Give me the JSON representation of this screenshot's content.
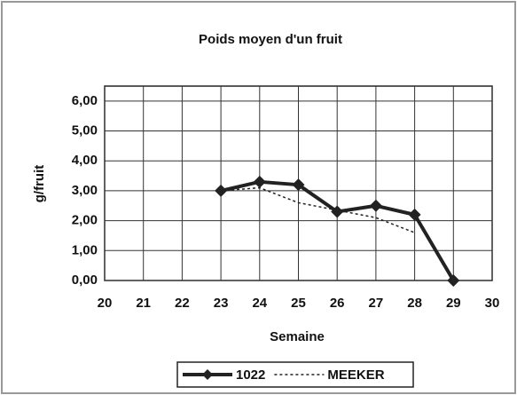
{
  "chart_data": {
    "type": "line",
    "title": "Poids moyen d'un fruit",
    "xlabel": "Semaine",
    "ylabel": "g/fruit",
    "xlim": [
      20,
      30
    ],
    "xticks": [
      20,
      21,
      22,
      23,
      24,
      25,
      26,
      27,
      28,
      29,
      30
    ],
    "ylim": [
      0,
      6.5
    ],
    "yticks": [
      {
        "value": 0,
        "label": "0,00"
      },
      {
        "value": 1,
        "label": "1,00"
      },
      {
        "value": 2,
        "label": "2,00"
      },
      {
        "value": 3,
        "label": "3,00"
      },
      {
        "value": 4,
        "label": "4,00"
      },
      {
        "value": 5,
        "label": "5,00"
      },
      {
        "value": 6,
        "label": "6,00"
      }
    ],
    "grid": true,
    "legend": "bottom",
    "series": [
      {
        "name": "1022",
        "color": "#222222",
        "style": "solid",
        "marker": "diamond",
        "x": [
          23,
          24,
          25,
          26,
          27,
          28,
          29
        ],
        "values": [
          3.0,
          3.3,
          3.2,
          2.3,
          2.5,
          2.2,
          0.0
        ]
      },
      {
        "name": "MEEKER",
        "color": "#222222",
        "style": "dotted",
        "x": [
          23,
          24,
          25,
          26,
          27,
          28
        ],
        "values": [
          3.0,
          3.1,
          2.6,
          2.35,
          2.1,
          1.6
        ]
      }
    ]
  }
}
